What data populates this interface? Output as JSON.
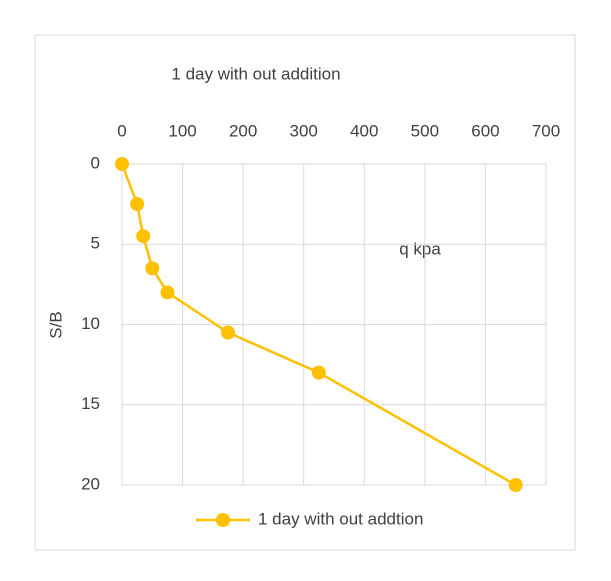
{
  "chart_data": {
    "type": "line",
    "title": "1 day with out addition",
    "x_label": "q kpa",
    "y_label": "S/B",
    "x": [
      0,
      25,
      35,
      50,
      75,
      175,
      325,
      650
    ],
    "series": [
      {
        "name": "1 day with out addtion",
        "color": "#FFC000",
        "values": [
          0,
          2.5,
          4.5,
          6.5,
          8,
          10.5,
          13,
          20
        ]
      }
    ],
    "xlim": [
      0,
      700
    ],
    "xticks": [
      0,
      100,
      200,
      300,
      400,
      500,
      600,
      700
    ],
    "ylim": [
      0,
      20
    ],
    "yticks": [
      0,
      5,
      10,
      15,
      20
    ],
    "y_inverted": true,
    "x_axis_position": "top",
    "grid": true,
    "markers": true,
    "legend": "bottom"
  }
}
